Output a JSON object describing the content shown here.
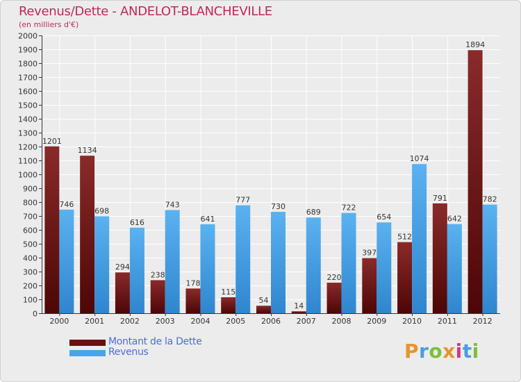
{
  "header": {
    "title": "Revenus/Dette - ANDELOT-BLANCHEVILLE",
    "subtitle": "(en milliers d'€)"
  },
  "logo": {
    "letters": [
      "P",
      "r",
      "o",
      "x",
      "i",
      "t",
      "i"
    ],
    "colors": [
      "#e8932a",
      "#4a9de0",
      "#7cbf3a",
      "#e8932a",
      "#d33a7a",
      "#4a9de0",
      "#7cbf3a"
    ]
  },
  "legend": [
    {
      "label": "Montant de la Dette",
      "color": "#6b0f0f"
    },
    {
      "label": "Revenus",
      "color": "#4aa3e8"
    }
  ],
  "chart_data": {
    "type": "bar",
    "categories": [
      "2000",
      "2001",
      "2002",
      "2003",
      "2004",
      "2005",
      "2006",
      "2007",
      "2008",
      "2009",
      "2010",
      "2011",
      "2012"
    ],
    "series": [
      {
        "name": "Montant de la Dette",
        "values": [
          1201,
          1134,
          294,
          238,
          178,
          115,
          54,
          14,
          220,
          397,
          512,
          791,
          1894
        ],
        "color": "#7a1a1a"
      },
      {
        "name": "Revenus",
        "values": [
          746,
          698,
          616,
          743,
          641,
          777,
          730,
          689,
          722,
          654,
          1074,
          642,
          782
        ],
        "color": "#3d9ae6"
      }
    ],
    "ylim": [
      0,
      2000
    ],
    "yticks": [
      0,
      100,
      200,
      300,
      400,
      500,
      600,
      700,
      800,
      900,
      1000,
      1100,
      1200,
      1300,
      1400,
      1500,
      1600,
      1700,
      1800,
      1900,
      2000
    ],
    "grid": true,
    "legend_position": "bottom-left"
  }
}
